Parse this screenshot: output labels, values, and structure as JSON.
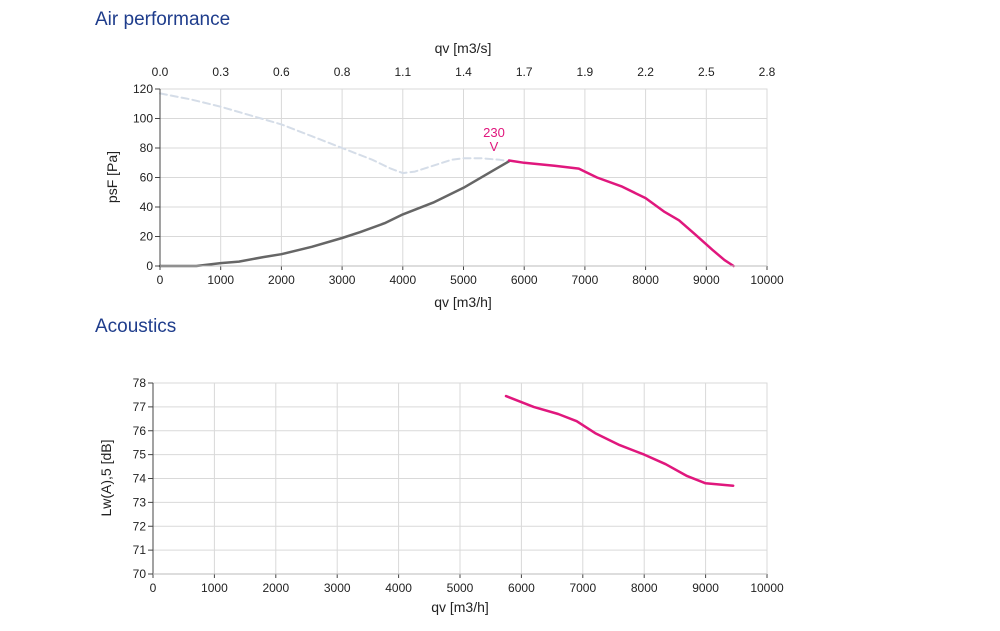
{
  "sections": {
    "air_title": "Air performance",
    "acoustics_title": "Acoustics"
  },
  "colors": {
    "voltage_curve": "#e0177d",
    "system_curve": "#666666",
    "stall_curve": "#d5dde8",
    "grid": "#d9d9d9",
    "title": "#1f3d8c"
  },
  "chart_data": [
    {
      "type": "line",
      "xlabel": "qv [m3/h]",
      "ylabel": "psF [Pa]",
      "x2label": "qv [m3/s]",
      "xlim": [
        0,
        10000
      ],
      "ylim": [
        0,
        120
      ],
      "xticks": [
        0,
        1000,
        2000,
        3000,
        4000,
        5000,
        6000,
        7000,
        8000,
        9000,
        10000
      ],
      "yticks": [
        0,
        20,
        40,
        60,
        80,
        100,
        120
      ],
      "x2ticks": [
        "0.0",
        "0.3",
        "0.6",
        "0.8",
        "1.1",
        "1.4",
        "1.7",
        "1.9",
        "2.2",
        "2.5",
        "2.8"
      ],
      "grid": true,
      "annotation": {
        "text_line1": "230",
        "text_line2": "V",
        "x": 5500,
        "y": 82
      },
      "series": [
        {
          "role": "stall",
          "x": [
            0,
            500,
            1000,
            1500,
            2000,
            2500,
            3000,
            3500,
            3800,
            4000,
            4200,
            4500,
            4800,
            5000,
            5300,
            5600,
            5750
          ],
          "y": [
            117,
            113,
            108,
            102,
            96,
            88,
            80,
            72,
            66,
            63,
            64,
            68,
            72,
            73,
            73,
            72,
            71
          ]
        },
        {
          "role": "system",
          "x": [
            0,
            300,
            600,
            1000,
            1300,
            1700,
            2000,
            2500,
            3000,
            3300,
            3700,
            4000,
            4500,
            5000,
            5500,
            5750
          ],
          "y": [
            0,
            0,
            0,
            2,
            3,
            6,
            8,
            13,
            19,
            23,
            29,
            35,
            43,
            53,
            65,
            71
          ]
        },
        {
          "role": "voltage",
          "x": [
            5750,
            6000,
            6500,
            6900,
            7000,
            7200,
            7600,
            8000,
            8300,
            8550,
            8800,
            9100,
            9300,
            9450
          ],
          "y": [
            71.5,
            70,
            68,
            66,
            64,
            60,
            54,
            46,
            37,
            31,
            22,
            11,
            4,
            0
          ]
        }
      ]
    },
    {
      "type": "line",
      "xlabel": "qv [m3/h]",
      "ylabel": "Lw(A),5 [dB]",
      "xlim": [
        0,
        10000
      ],
      "ylim": [
        70,
        78
      ],
      "xticks": [
        0,
        1000,
        2000,
        3000,
        4000,
        5000,
        6000,
        7000,
        8000,
        9000,
        10000
      ],
      "yticks": [
        70,
        71,
        72,
        73,
        74,
        75,
        76,
        77,
        78
      ],
      "grid": true,
      "series": [
        {
          "role": "voltage",
          "x": [
            5750,
            6200,
            6600,
            6900,
            7200,
            7600,
            8000,
            8350,
            8700,
            9000,
            9450
          ],
          "y": [
            77.45,
            77.0,
            76.7,
            76.4,
            75.9,
            75.4,
            75.0,
            74.6,
            74.1,
            73.8,
            73.7
          ]
        }
      ]
    }
  ]
}
